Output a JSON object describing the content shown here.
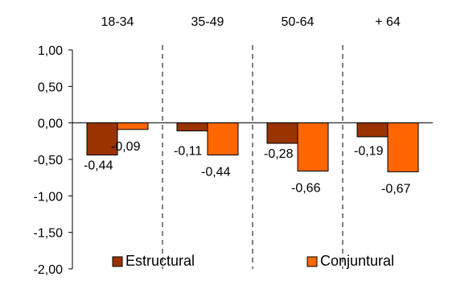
{
  "chart_data": {
    "type": "bar",
    "categories": [
      "18-34",
      "35-49",
      "50-64",
      "+ 64"
    ],
    "series": [
      {
        "name": "Estructural",
        "color": "#993300",
        "values": [
          -0.44,
          -0.11,
          -0.28,
          -0.19
        ],
        "labels": [
          "-0,44",
          "-0,11",
          "-0,28",
          "-0,19"
        ]
      },
      {
        "name": "Conjuntural",
        "color": "#FF6600",
        "values": [
          -0.09,
          -0.44,
          -0.66,
          -0.67
        ],
        "labels": [
          "-0,09",
          "-0,44",
          "-0,66",
          "-0,67"
        ]
      }
    ],
    "y_ticks": [
      1.0,
      0.5,
      0.0,
      -0.5,
      -1.0,
      -1.5,
      -2.0
    ],
    "y_tick_labels": [
      "1,00",
      "0,50",
      "0,00",
      "-0,50",
      "-1,00",
      "-1,50",
      "-2,00"
    ],
    "ylim": [
      -2.0,
      1.0
    ],
    "category_labels_position": "top",
    "group_separators": "dashed",
    "grid": false,
    "legend_position": "bottom"
  }
}
